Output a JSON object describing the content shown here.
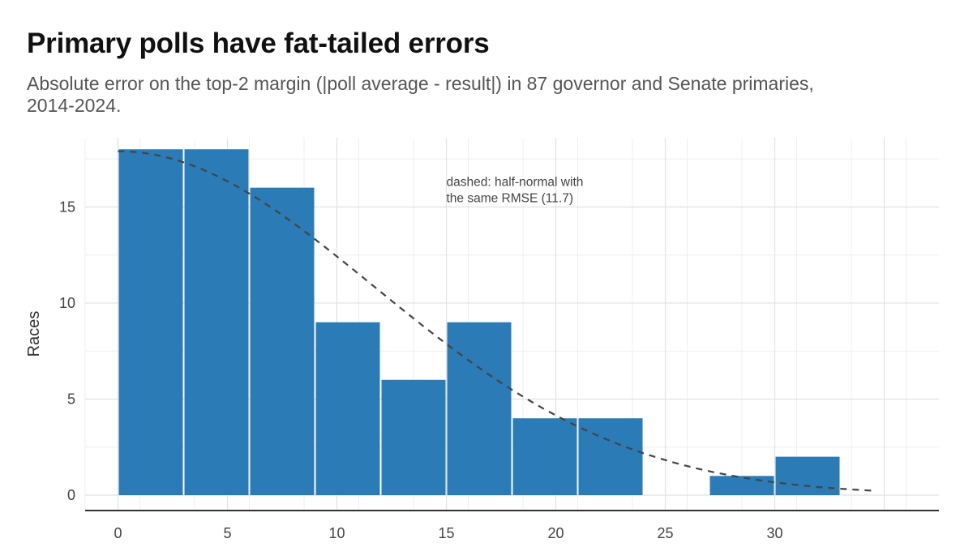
{
  "header": {
    "title": "Primary polls have fat-tailed errors",
    "subtitle": "Absolute error on the top-2 margin (|poll average - result|) in 87 governor and Senate primaries, 2014-2024."
  },
  "chart_data": {
    "type": "bar",
    "title": "Primary polls have fat-tailed errors",
    "subtitle": "Absolute error on the top-2 margin (|poll average - result|) in 87 governor and Senate primaries, 2014-2024.",
    "xlabel": "",
    "ylabel": "Races",
    "bin_width": 3,
    "bins": [
      {
        "start": 0,
        "end": 3,
        "value": 18
      },
      {
        "start": 3,
        "end": 6,
        "value": 18
      },
      {
        "start": 6,
        "end": 9,
        "value": 16
      },
      {
        "start": 9,
        "end": 12,
        "value": 9
      },
      {
        "start": 12,
        "end": 15,
        "value": 6
      },
      {
        "start": 15,
        "end": 18,
        "value": 9
      },
      {
        "start": 18,
        "end": 21,
        "value": 4
      },
      {
        "start": 21,
        "end": 24,
        "value": 4
      },
      {
        "start": 24,
        "end": 27,
        "value": 0
      },
      {
        "start": 27,
        "end": 30,
        "value": 1
      },
      {
        "start": 30,
        "end": 33,
        "value": 2
      }
    ],
    "xlim": [
      -1.5,
      37.5
    ],
    "ylim": [
      -0.8,
      18.6
    ],
    "x_ticks": [
      0,
      5,
      10,
      15,
      20,
      25,
      30
    ],
    "y_ticks": [
      0,
      5,
      10,
      15
    ],
    "x_tick_labels": [
      "0",
      "5",
      "10",
      "15",
      "20",
      "25",
      "30"
    ],
    "y_tick_labels": [
      "0",
      "5",
      "10",
      "15"
    ],
    "reference_curve": {
      "type": "half-normal",
      "rmse": 11.7,
      "peak": 17.9,
      "x_end": 34.5,
      "style": "dashed"
    },
    "annotation": {
      "lines": [
        "dashed: half-normal with",
        "the same RMSE (11.7)"
      ],
      "x": 15,
      "y": 16.1
    },
    "grid": true,
    "bar_color": "#2b7bb6",
    "curve_color": "#444444",
    "grid_color": "#e2e2e2"
  }
}
